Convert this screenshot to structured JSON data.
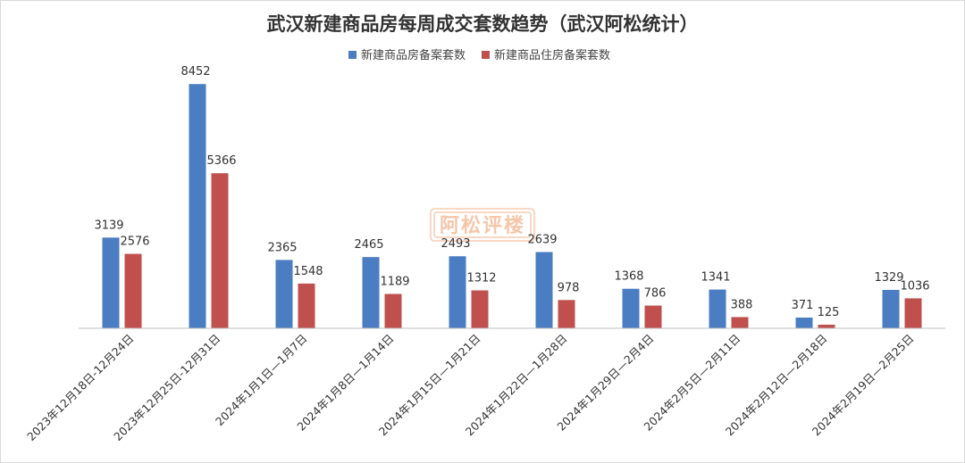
{
  "chart_data": {
    "type": "bar",
    "title": "武汉新建商品房每周成交套数趋势（武汉阿松统计）",
    "legend_position": "top-center",
    "grid": false,
    "ylim": [
      0,
      9200
    ],
    "categories": [
      "2023年12月18日-12月24日",
      "2023年12月25日-12月31日",
      "2024年1月1日—1月7日",
      "2024年1月8日—1月14日",
      "2024年1月15日—1月21日",
      "2024年1月22日—1月28日",
      "2024年1月29日—2月4日",
      "2024年2月5日—2月11日",
      "2024年2月12日—2月18日",
      "2024年2月19日—2月25日"
    ],
    "series": [
      {
        "name": "新建商品房备案套数",
        "color": "#4a7dc1",
        "values": [
          3139,
          8452,
          2365,
          2465,
          2493,
          2639,
          1368,
          1341,
          371,
          1329
        ]
      },
      {
        "name": "新建商品住房备案套数",
        "color": "#c0504d",
        "values": [
          2576,
          5366,
          1548,
          1189,
          1312,
          978,
          786,
          388,
          125,
          1036
        ]
      }
    ]
  },
  "watermark": {
    "text": "阿松评楼",
    "color": "#f0a070"
  }
}
